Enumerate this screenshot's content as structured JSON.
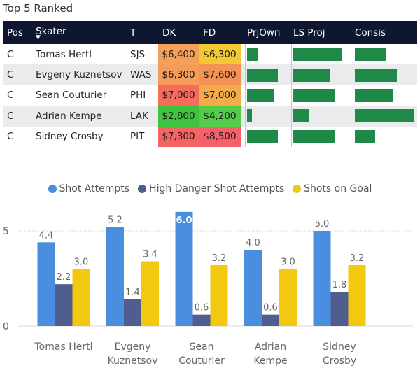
{
  "title": "Top 5 Ranked",
  "table": {
    "headers": [
      "Pos",
      "Skater",
      "T",
      "DK",
      "FD",
      "PrjOwn",
      "LS Proj",
      "Consis"
    ],
    "sort_indicator": "▼",
    "colors": {
      "header_bg": "#0e1630",
      "bar": "#1f8a47",
      "row_alt": "#eaebed"
    },
    "rows": [
      {
        "pos": "C",
        "skater": "Tomas Hertl",
        "team": "SJS",
        "dk": "$6,400",
        "fd": "$6,300",
        "dk_color": "#f5a05a",
        "fd_color": "#f2c933",
        "prjown": 0.27,
        "lsproj": 0.88,
        "consis": 0.52
      },
      {
        "pos": "C",
        "skater": "Evgeny Kuznetsov",
        "team": "WAS",
        "dk": "$6,300",
        "fd": "$7,600",
        "dk_color": "#f59d58",
        "fd_color": "#f49256",
        "prjown": 0.79,
        "lsproj": 0.66,
        "consis": 0.71
      },
      {
        "pos": "C",
        "skater": "Sean Couturier",
        "team": "PHI",
        "dk": "$7,000",
        "fd": "$7,000",
        "dk_color": "#f56b5c",
        "fd_color": "#f4ac4b",
        "prjown": 0.68,
        "lsproj": 0.76,
        "consis": 0.64
      },
      {
        "pos": "C",
        "skater": "Adrian Kempe",
        "team": "LAK",
        "dk": "$2,800",
        "fd": "$4,200",
        "dk_color": "#3fc43f",
        "fd_color": "#55cc49",
        "prjown": 0.12,
        "lsproj": 0.3,
        "consis": 1.0
      },
      {
        "pos": "C",
        "skater": "Sidney Crosby",
        "team": "PIT",
        "dk": "$7,300",
        "fd": "$8,500",
        "dk_color": "#f56462",
        "fd_color": "#f5606a",
        "prjown": 0.79,
        "lsproj": 0.76,
        "consis": 0.34
      }
    ]
  },
  "chart_data": {
    "type": "bar",
    "categories": [
      "Tomas Hertl",
      "Evgeny Kuznetsov",
      "Sean Couturier",
      "Adrian Kempe",
      "Sidney Crosby"
    ],
    "category_lines": [
      [
        "Tomas Hertl"
      ],
      [
        "Evgeny",
        "Kuznetsov"
      ],
      [
        "Sean",
        "Couturier"
      ],
      [
        "Adrian",
        "Kempe"
      ],
      [
        "Sidney",
        "Crosby"
      ]
    ],
    "series": [
      {
        "name": "Shot Attempts",
        "color": "#4a8fdf",
        "values": [
          4.4,
          5.2,
          6.0,
          4.0,
          5.0
        ],
        "labels": [
          "4.4",
          "5.2",
          "6.0",
          "4.0",
          "5.0"
        ]
      },
      {
        "name": "High Danger Shot Attempts",
        "color": "#4f5e8f",
        "values": [
          2.2,
          1.4,
          0.6,
          0.6,
          1.8
        ],
        "labels": [
          "2.2",
          "1.4",
          "0.6",
          "0.6",
          "1.8"
        ]
      },
      {
        "name": "Shots on Goal",
        "color": "#f2c811",
        "values": [
          3.0,
          3.4,
          3.2,
          3.0,
          3.2
        ],
        "labels": [
          "3.0",
          "3.4",
          "3.2",
          "3.0",
          "3.2"
        ]
      }
    ],
    "yticks": [
      {
        "value": 0,
        "label": "0"
      },
      {
        "value": 5,
        "label": "5"
      }
    ],
    "ylim": [
      0,
      6
    ],
    "grid": true,
    "legend_position": "top-center"
  }
}
